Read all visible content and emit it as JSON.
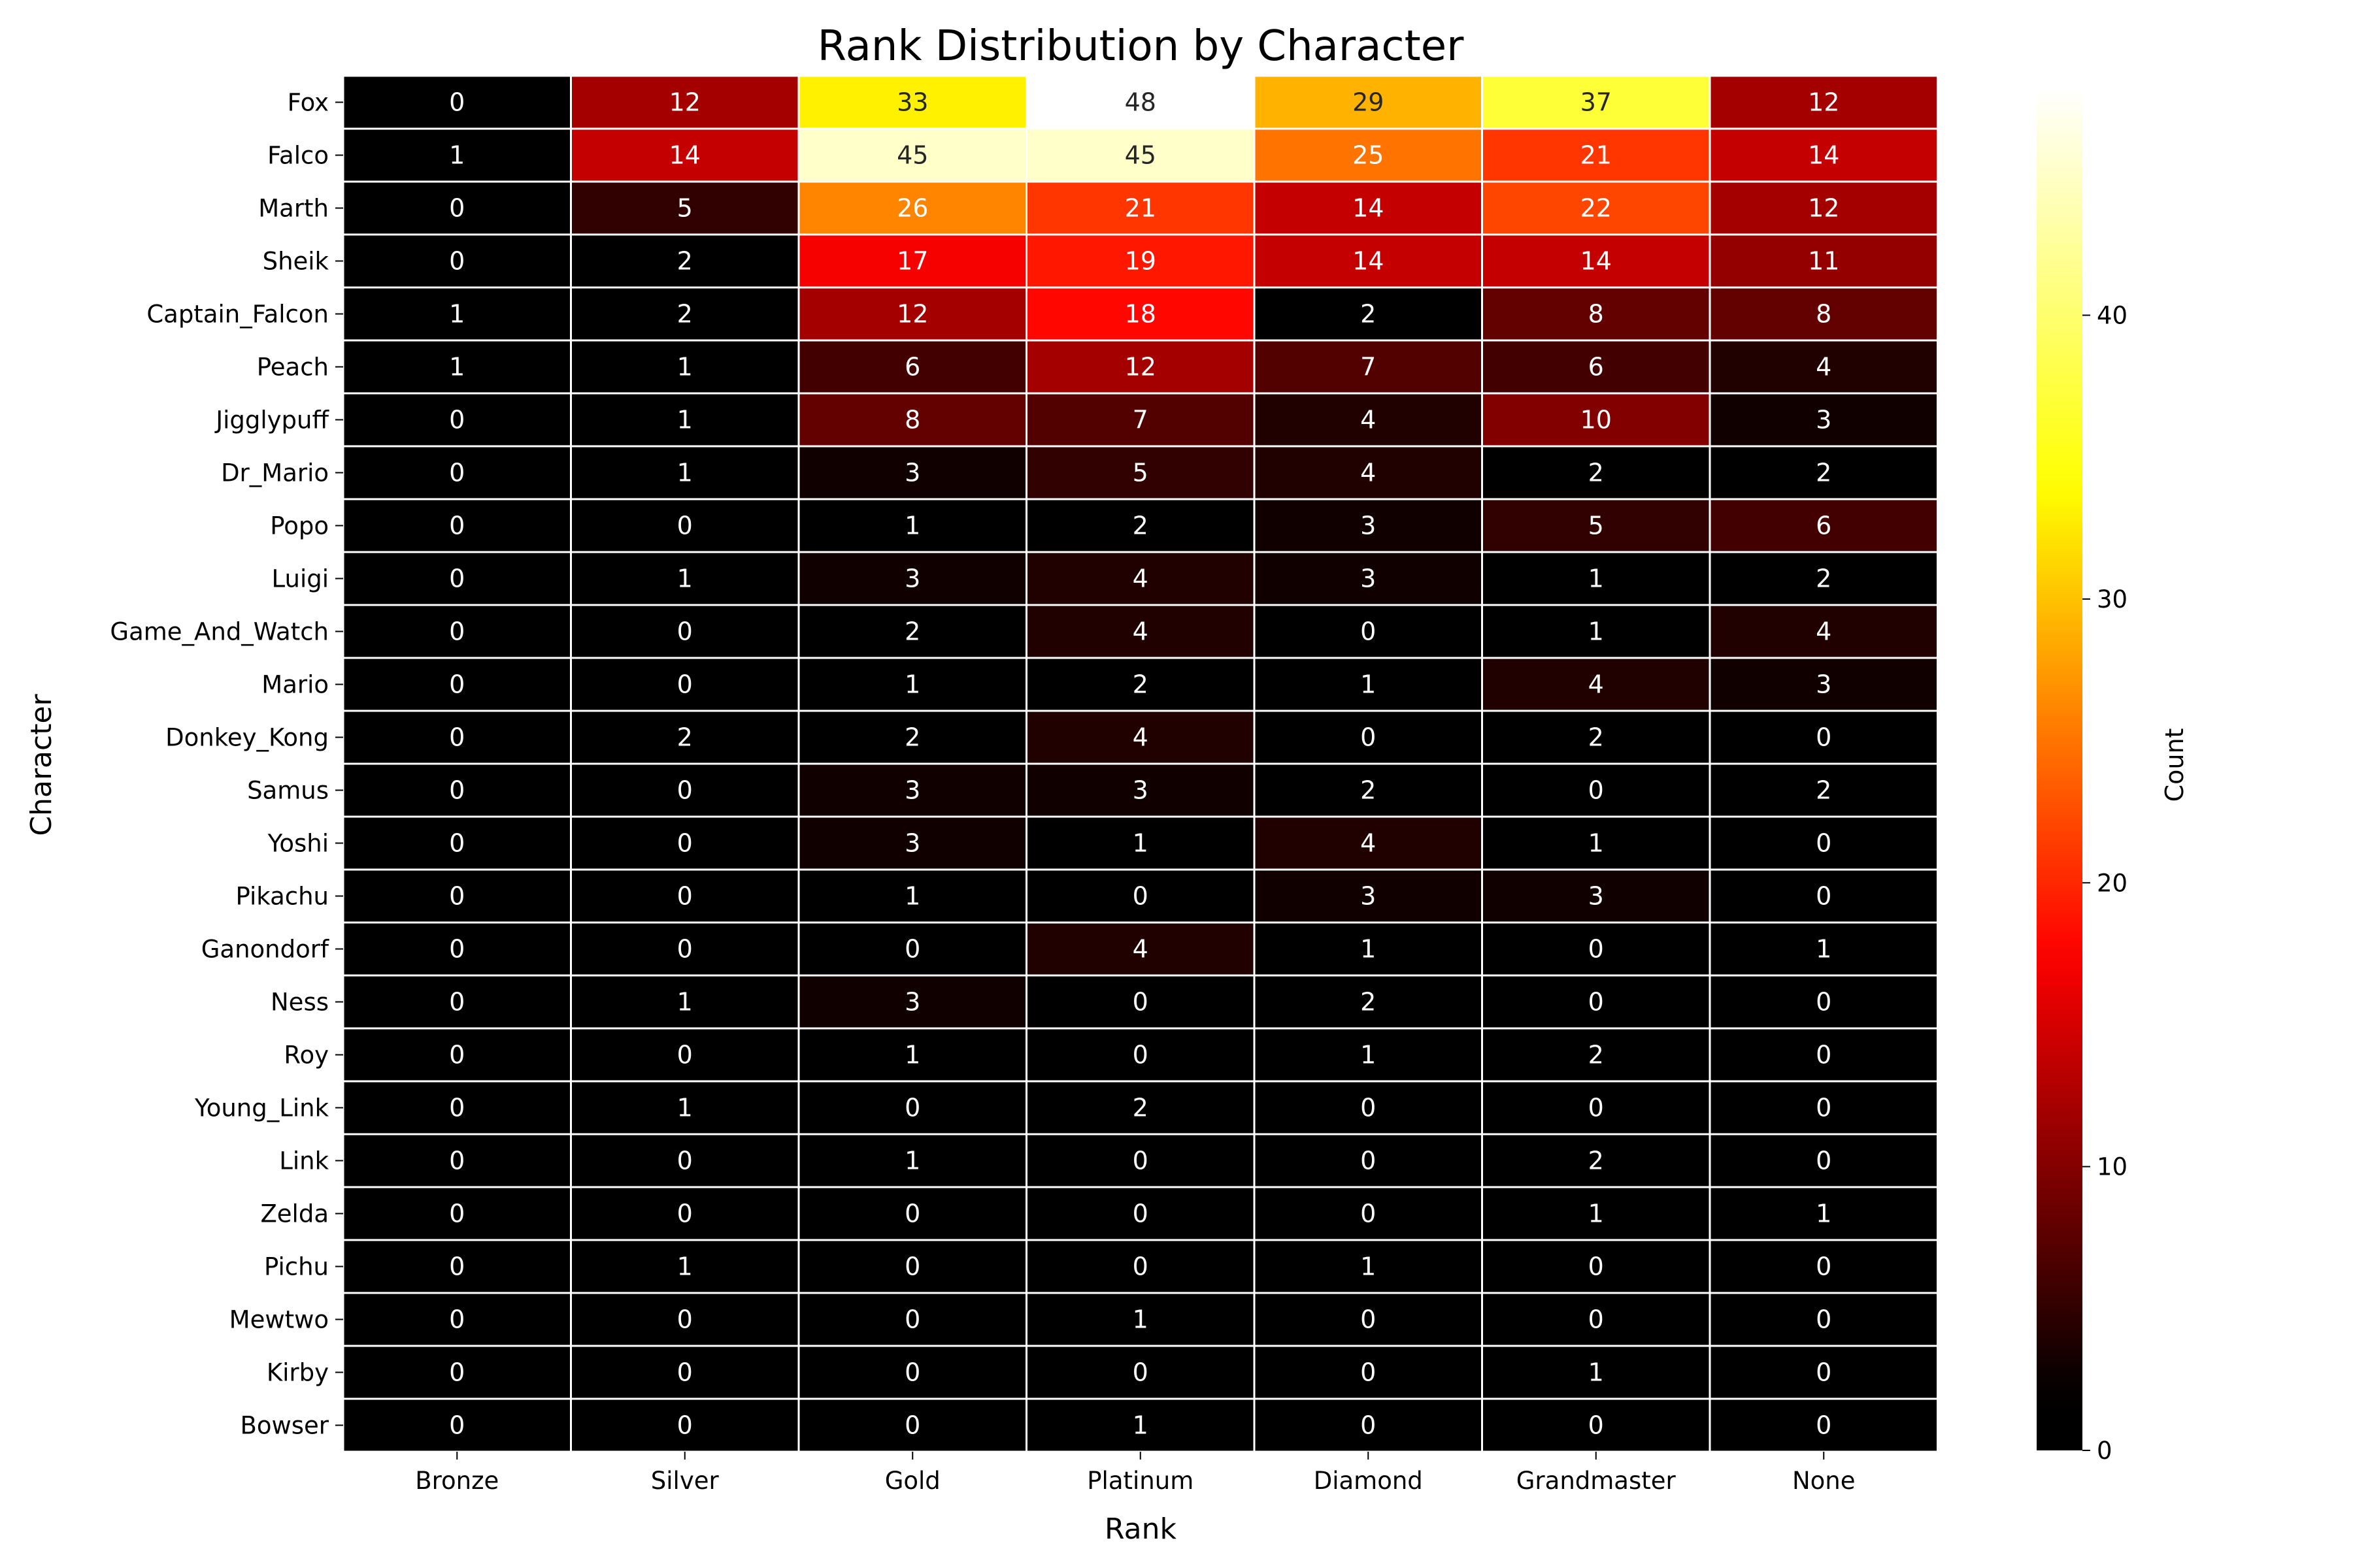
{
  "chart_data": {
    "type": "heatmap",
    "title": "Rank Distribution by Character",
    "xlabel": "Rank",
    "ylabel": "Character",
    "colorbar_label": "Count",
    "colormap": "hot",
    "value_range": [
      0,
      48
    ],
    "colorbar_ticks": [
      0,
      10,
      20,
      30,
      40
    ],
    "grid_line_color": "#ffffff",
    "columns": [
      "Bronze",
      "Silver",
      "Gold",
      "Platinum",
      "Diamond",
      "Grandmaster",
      "None"
    ],
    "rows": [
      "Fox",
      "Falco",
      "Marth",
      "Sheik",
      "Captain_Falcon",
      "Peach",
      "Jigglypuff",
      "Dr_Mario",
      "Popo",
      "Luigi",
      "Game_And_Watch",
      "Mario",
      "Donkey_Kong",
      "Samus",
      "Yoshi",
      "Pikachu",
      "Ganondorf",
      "Ness",
      "Roy",
      "Young_Link",
      "Link",
      "Zelda",
      "Pichu",
      "Mewtwo",
      "Kirby",
      "Bowser"
    ],
    "values": [
      [
        0,
        12,
        33,
        48,
        29,
        37,
        12
      ],
      [
        1,
        14,
        45,
        45,
        25,
        21,
        14
      ],
      [
        0,
        5,
        26,
        21,
        14,
        22,
        12
      ],
      [
        0,
        2,
        17,
        19,
        14,
        14,
        11
      ],
      [
        1,
        2,
        12,
        18,
        2,
        8,
        8
      ],
      [
        1,
        1,
        6,
        12,
        7,
        6,
        4
      ],
      [
        0,
        1,
        8,
        7,
        4,
        10,
        3
      ],
      [
        0,
        1,
        3,
        5,
        4,
        2,
        2
      ],
      [
        0,
        0,
        1,
        2,
        3,
        5,
        6
      ],
      [
        0,
        1,
        3,
        4,
        3,
        1,
        2
      ],
      [
        0,
        0,
        2,
        4,
        0,
        1,
        4
      ],
      [
        0,
        0,
        1,
        2,
        1,
        4,
        3
      ],
      [
        0,
        2,
        2,
        4,
        0,
        2,
        0
      ],
      [
        0,
        0,
        3,
        3,
        2,
        0,
        2
      ],
      [
        0,
        0,
        3,
        1,
        4,
        1,
        0
      ],
      [
        0,
        0,
        1,
        0,
        3,
        3,
        0
      ],
      [
        0,
        0,
        0,
        4,
        1,
        0,
        1
      ],
      [
        0,
        1,
        3,
        0,
        2,
        0,
        0
      ],
      [
        0,
        0,
        1,
        0,
        1,
        2,
        0
      ],
      [
        0,
        1,
        0,
        2,
        0,
        0,
        0
      ],
      [
        0,
        0,
        1,
        0,
        0,
        2,
        0
      ],
      [
        0,
        0,
        0,
        0,
        0,
        1,
        1
      ],
      [
        0,
        1,
        0,
        0,
        1,
        0,
        0
      ],
      [
        0,
        0,
        0,
        1,
        0,
        0,
        0
      ],
      [
        0,
        0,
        0,
        0,
        0,
        1,
        0
      ],
      [
        0,
        0,
        0,
        1,
        0,
        0,
        0
      ]
    ]
  }
}
